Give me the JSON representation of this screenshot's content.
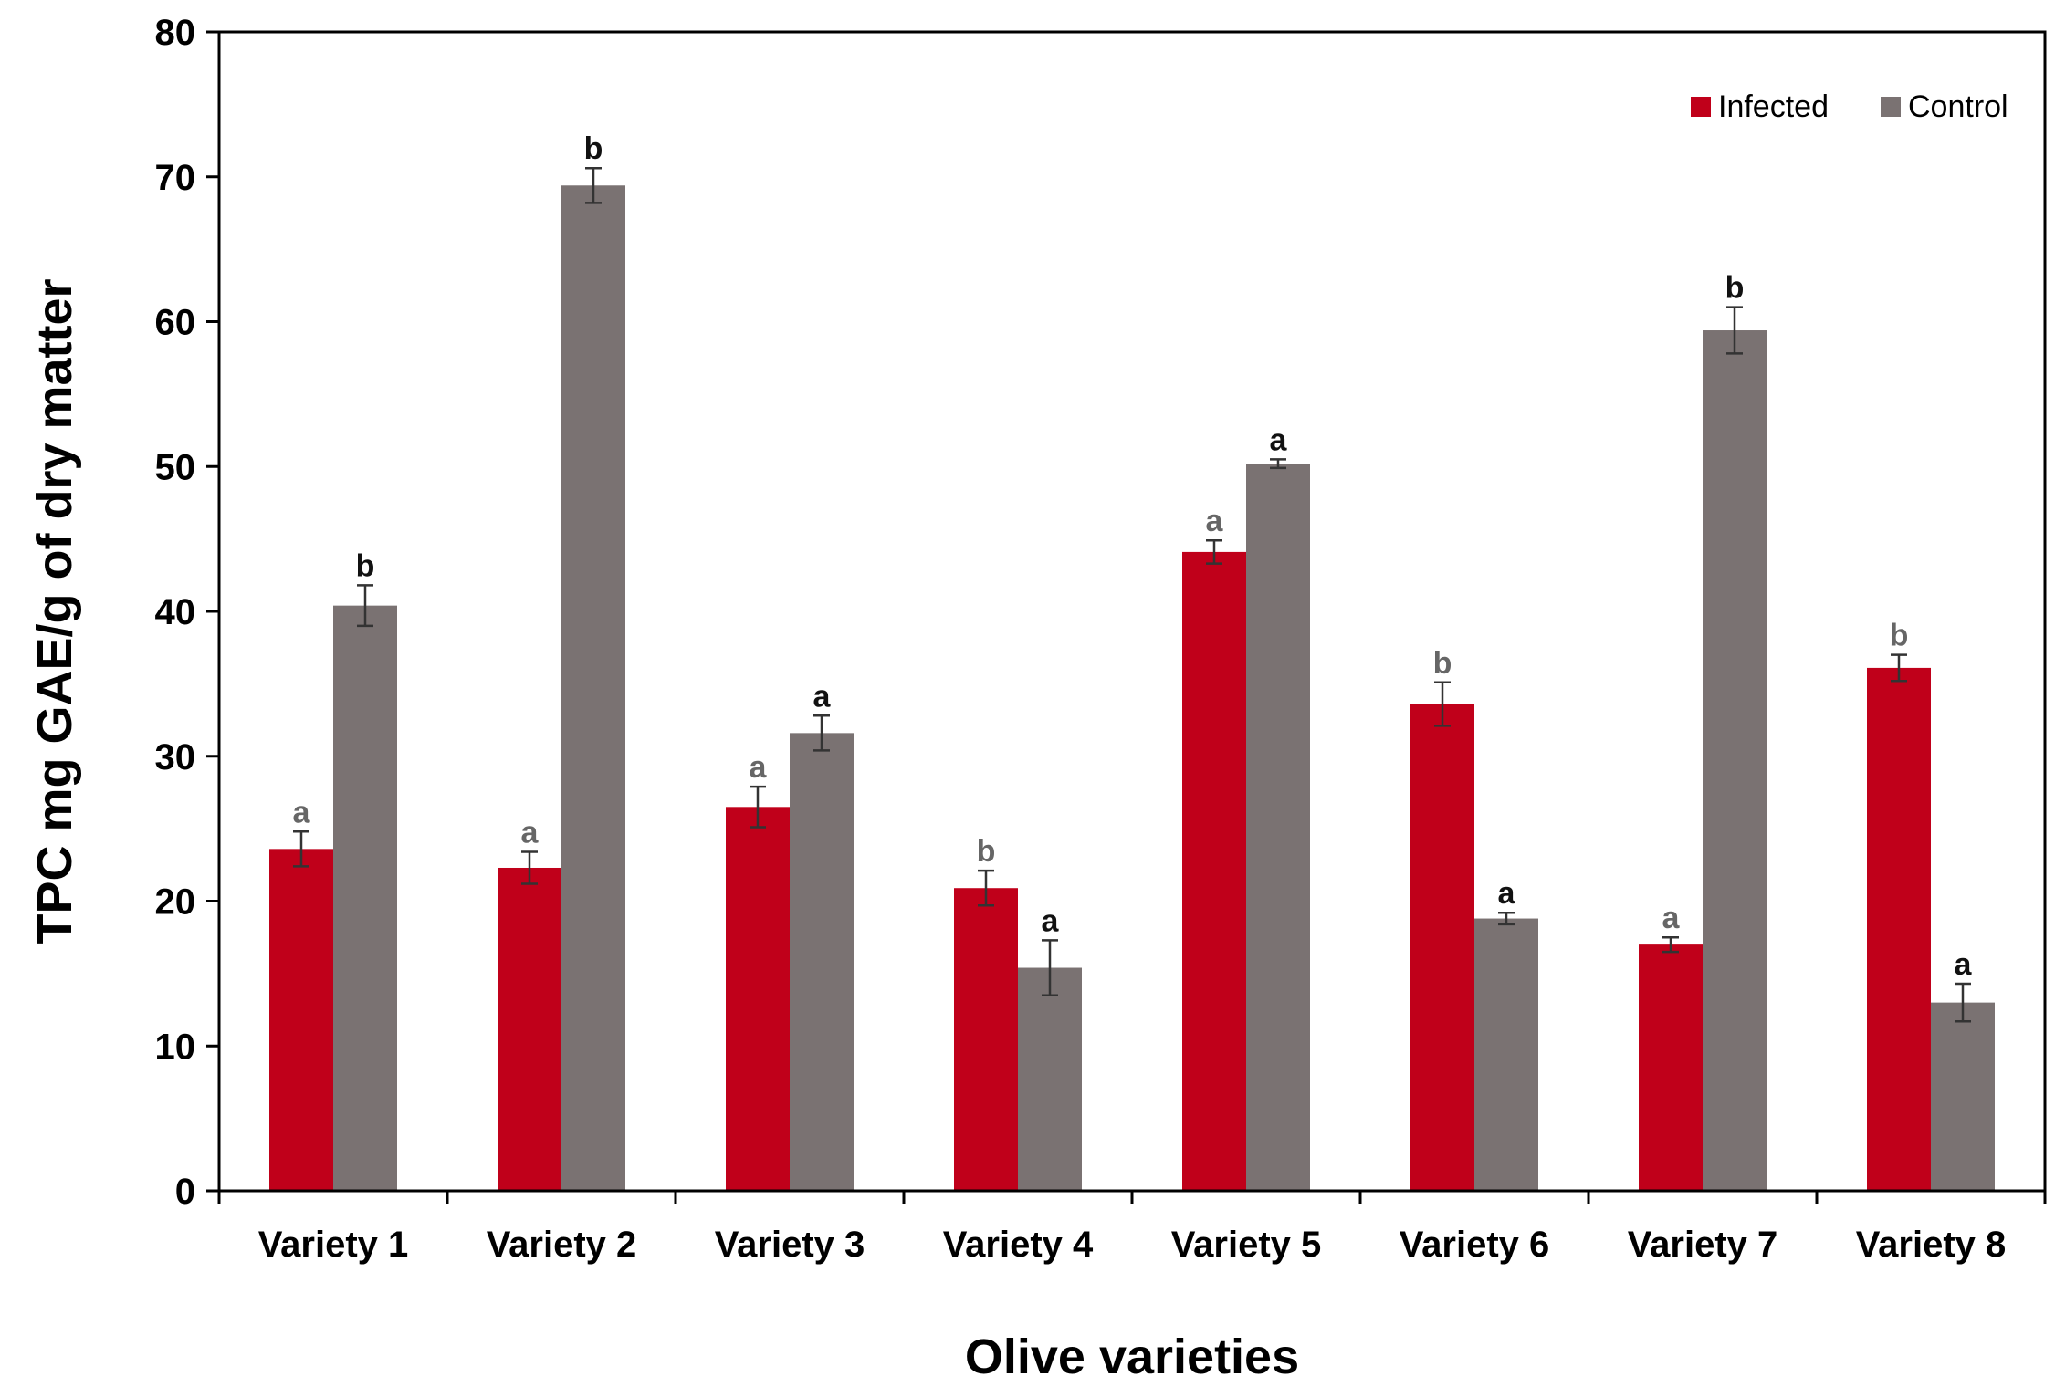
{
  "chart_data": {
    "type": "bar",
    "title": "",
    "xlabel": "Olive varieties",
    "ylabel": "TPC mg GAE/g of dry matter",
    "ylim": [
      0,
      80
    ],
    "yticks": [
      0,
      10,
      20,
      30,
      40,
      50,
      60,
      70,
      80
    ],
    "grid": false,
    "legend_position": "top-right",
    "categories": [
      "Variety 1",
      "Variety 2",
      "Variety 3",
      "Variety 4",
      "Variety 5",
      "Variety 6",
      "Variety 7",
      "Variety 8"
    ],
    "series": [
      {
        "name": "Infected",
        "color": "#c0001a",
        "values": [
          23.6,
          22.3,
          26.5,
          20.9,
          44.1,
          33.6,
          17.0,
          36.1
        ],
        "errors": [
          1.2,
          1.1,
          1.4,
          1.2,
          0.8,
          1.5,
          0.5,
          0.9
        ],
        "letters": [
          "a",
          "a",
          "a",
          "b",
          "a",
          "b",
          "a",
          "b"
        ]
      },
      {
        "name": "Control",
        "color": "#7a7272",
        "values": [
          40.4,
          69.4,
          31.6,
          15.4,
          50.2,
          18.8,
          59.4,
          13.0
        ],
        "errors": [
          1.4,
          1.2,
          1.2,
          1.9,
          0.3,
          0.4,
          1.6,
          1.3
        ],
        "letters": [
          "b",
          "b",
          "a",
          "a",
          "a",
          "a",
          "b",
          "a"
        ]
      }
    ]
  }
}
